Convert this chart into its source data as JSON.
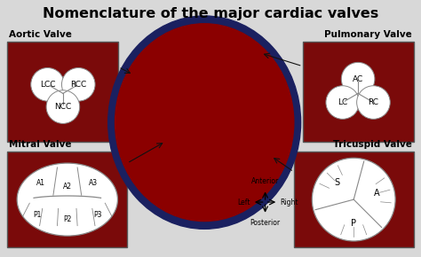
{
  "title": "Nomenclature of the major cardiac valves",
  "title_fontsize": 11.5,
  "bg_color": "#d8d8d8",
  "dark_red": "#7a0a0a",
  "white": "#ffffff",
  "aortic_label": "Aortic Valve",
  "aortic_cusps": [
    "LCC",
    "RCC",
    "NCC"
  ],
  "pulmonary_label": "Pulmonary Valve",
  "pulmonary_cusps": [
    "AC",
    "LC",
    "RC"
  ],
  "mitral_label": "Mitral Valve",
  "mitral_cusps": [
    "A1",
    "A2",
    "A3",
    "P1",
    "P2",
    "P3"
  ],
  "tricuspid_label": "Tricuspid Valve",
  "tricuspid_cusps": [
    "A",
    "S",
    "P"
  ],
  "directions": [
    "Anterior",
    "Left",
    "Right",
    "Posterior"
  ],
  "panel_label_color": "#000000",
  "panel_label_bg": "#d8d8d8",
  "line_color": "#888888",
  "annotation_color": "#111111"
}
